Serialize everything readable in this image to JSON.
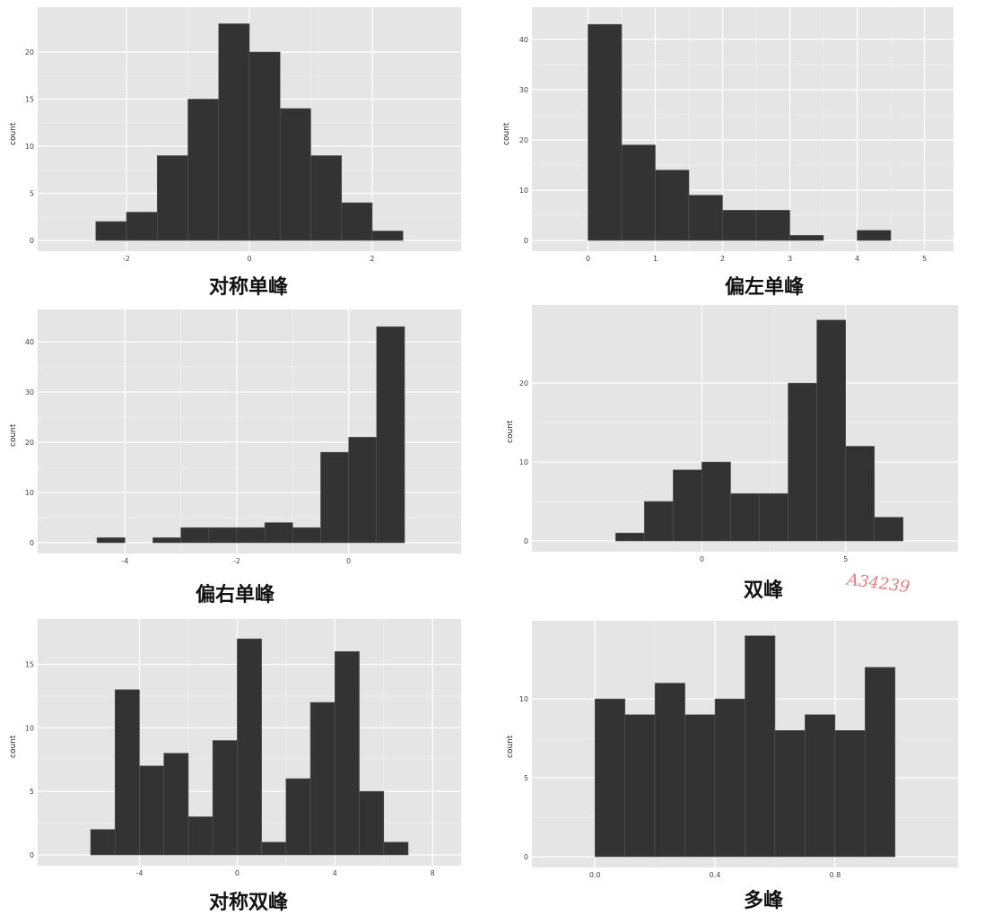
{
  "chart_data": [
    {
      "type": "bar",
      "title": "对称单峰",
      "ylabel": "count",
      "bin_edges": [
        -2.5,
        -2.0,
        -1.5,
        -1.0,
        -0.5,
        0.0,
        0.5,
        1.0,
        1.5,
        2.0,
        2.5
      ],
      "values": [
        2,
        3,
        9,
        15,
        23,
        20,
        14,
        9,
        4,
        1
      ],
      "xlim": [
        -3.3,
        3.3
      ],
      "ylim": [
        0,
        24
      ],
      "xticks": [
        -2,
        0,
        2
      ],
      "yticks": [
        0,
        5,
        10,
        15,
        20
      ],
      "xtick_labels": [
        "-2",
        "0",
        "2"
      ],
      "ytick_labels": [
        "0",
        "5",
        "10",
        "15",
        "20"
      ],
      "grid": true
    },
    {
      "type": "bar",
      "title": "偏左单峰",
      "ylabel": "count",
      "bin_edges": [
        0.0,
        0.5,
        1.0,
        1.5,
        2.0,
        2.5,
        3.0,
        3.5,
        4.0,
        4.5
      ],
      "values": [
        43,
        19,
        14,
        9,
        6,
        6,
        1,
        0,
        2
      ],
      "xlim": [
        -0.7,
        5.3
      ],
      "ylim": [
        0,
        45
      ],
      "xticks": [
        0,
        1,
        2,
        3,
        4,
        5
      ],
      "yticks": [
        0,
        10,
        20,
        30,
        40
      ],
      "xtick_labels": [
        "0",
        "1",
        "2",
        "3",
        "4",
        "5"
      ],
      "ytick_labels": [
        "0",
        "10",
        "20",
        "30",
        "40"
      ],
      "grid": true
    },
    {
      "type": "bar",
      "title": "偏右单峰",
      "ylabel": "count",
      "bin_edges": [
        -4.5,
        -4.0,
        -3.5,
        -3.0,
        -2.5,
        -2.0,
        -1.5,
        -1.0,
        -0.5,
        0.0,
        0.5,
        1.0
      ],
      "values": [
        1,
        0,
        1,
        3,
        3,
        3,
        4,
        3,
        18,
        21,
        43
      ],
      "xlim": [
        -5.4,
        1.85
      ],
      "ylim": [
        0,
        45
      ],
      "xticks": [
        -4,
        -2,
        0
      ],
      "yticks": [
        0,
        10,
        20,
        30,
        40
      ],
      "xtick_labels": [
        "-4",
        "-2",
        "0"
      ],
      "ytick_labels": [
        "0",
        "10",
        "20",
        "30",
        "40"
      ],
      "grid": true
    },
    {
      "type": "bar",
      "title": "双峰",
      "ylabel": "count",
      "bin_edges": [
        -3.0,
        -2.0,
        -1.0,
        0.0,
        1.0,
        2.0,
        3.0,
        4.0,
        5.0,
        6.0,
        7.0
      ],
      "values": [
        1,
        5,
        9,
        10,
        6,
        6,
        20,
        28,
        12,
        3
      ],
      "xlim": [
        -5.6,
        8.6
      ],
      "ylim": [
        0,
        29
      ],
      "xticks": [
        0,
        5
      ],
      "yticks": [
        0,
        10,
        20
      ],
      "xtick_labels": [
        "0",
        "5"
      ],
      "ytick_labels": [
        "0",
        "10",
        "20"
      ],
      "grid": true
    },
    {
      "type": "bar",
      "title": "对称双峰",
      "ylabel": "count",
      "bin_edges": [
        -6.0,
        -5.0,
        -4.0,
        -3.0,
        -2.0,
        -1.0,
        0.0,
        1.0,
        2.0,
        3.0,
        4.0,
        5.0,
        6.0,
        7.0
      ],
      "values": [
        2,
        13,
        7,
        8,
        3,
        9,
        17,
        1,
        6,
        12,
        16,
        5,
        1
      ],
      "xlim": [
        -7.8,
        8.8
      ],
      "ylim": [
        0,
        18
      ],
      "xticks": [
        -4,
        0,
        4,
        8
      ],
      "yticks": [
        0,
        5,
        10,
        15
      ],
      "xtick_labels": [
        "-4",
        "0",
        "4",
        "8"
      ],
      "ytick_labels": [
        "0",
        "5",
        "10",
        "15"
      ],
      "grid": true
    },
    {
      "type": "bar",
      "title": "多峰",
      "ylabel": "count",
      "bin_edges": [
        0.0,
        0.1,
        0.2,
        0.3,
        0.4,
        0.5,
        0.6,
        0.7,
        0.8,
        0.9,
        1.0
      ],
      "values": [
        10,
        9,
        11,
        9,
        10,
        14,
        8,
        9,
        8,
        12
      ],
      "xlim": [
        -0.18,
        1.18
      ],
      "ylim": [
        0,
        14.5
      ],
      "xticks": [
        0.0,
        0.4,
        0.8
      ],
      "yticks": [
        0,
        5,
        10
      ],
      "xtick_labels": [
        "0.0",
        "0.4",
        "0.8"
      ],
      "ytick_labels": [
        "0",
        "5",
        "10"
      ],
      "grid": true
    }
  ],
  "watermark": "A34239",
  "colors": {
    "panel_bg": "#e5e5e5",
    "bar": "#333333",
    "grid_major": "#ffffff",
    "grid_minor": "#f0f0f0"
  }
}
